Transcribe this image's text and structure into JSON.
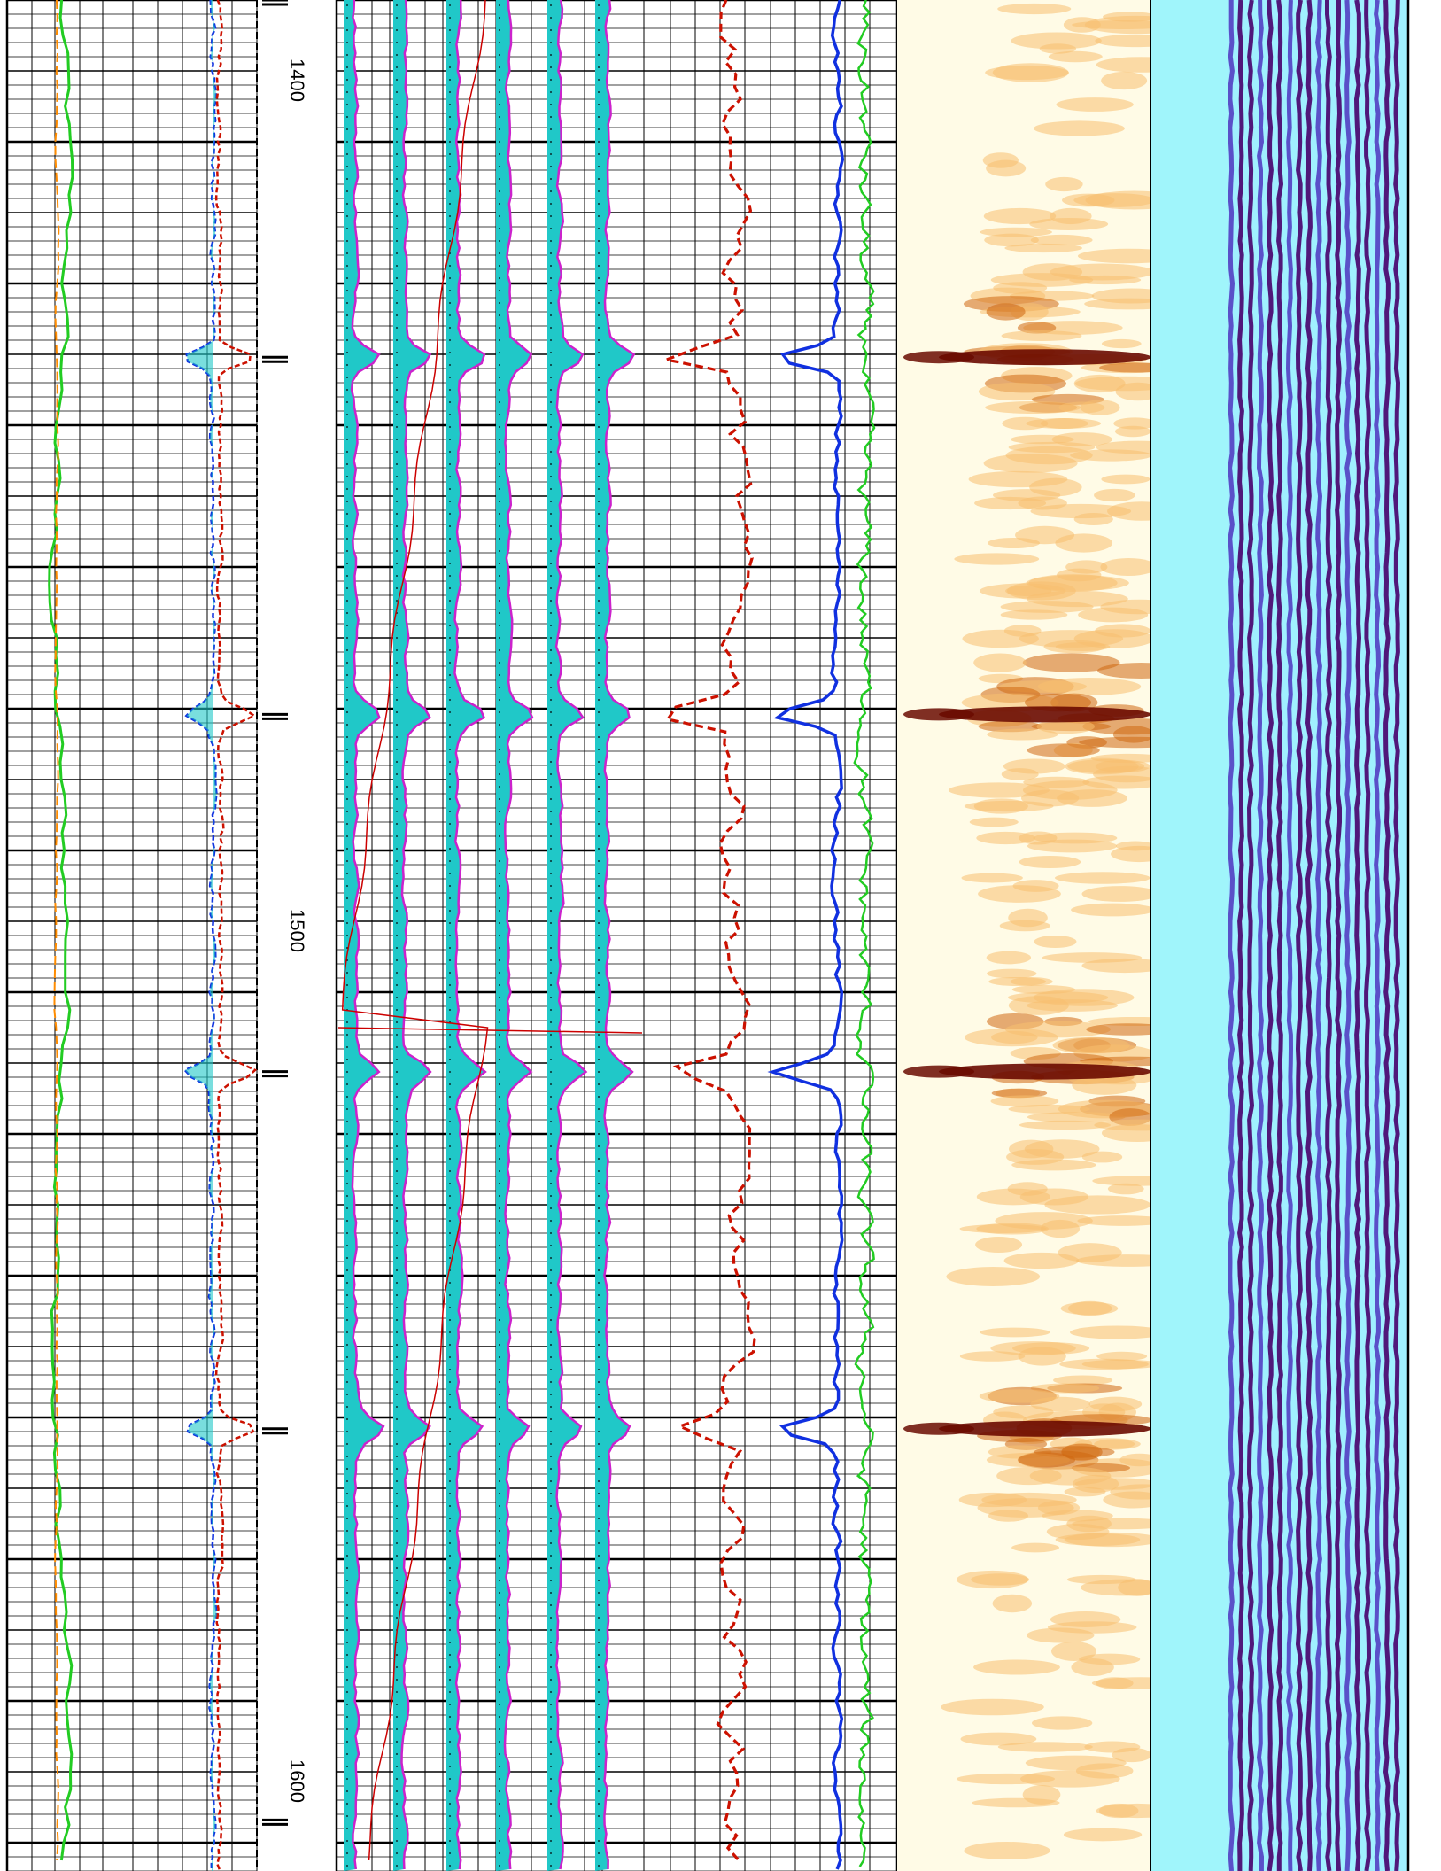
{
  "chart_data": {
    "type": "line",
    "title": "",
    "depth_axis": {
      "ticks": [
        "1400",
        "1500",
        "1600"
      ],
      "range": [
        1390,
        1610
      ]
    },
    "coupling_marks_depth": [
      1390,
      1432,
      1474,
      1516,
      1558,
      1604
    ],
    "tracks": [
      {
        "name": "",
        "series": [
          {
            "name": "",
            "color": "#22cc22",
            "style": "solid"
          },
          {
            "name": "",
            "color": "#ff8c00",
            "style": "dashed"
          },
          {
            "name": "",
            "color": "#1030e0",
            "style": "solid"
          },
          {
            "name": "",
            "color": "#cc1100",
            "style": "dashed"
          }
        ]
      },
      {
        "name": "",
        "series": [
          {
            "name": "",
            "color": "#cc22cc",
            "fill": "#20c8c8"
          },
          {
            "name": "",
            "color": "#cc0000",
            "style": "solid"
          }
        ]
      },
      {
        "name": "",
        "series": [
          {
            "name": "",
            "color": "#cc1100",
            "style": "dashed"
          },
          {
            "name": "",
            "color": "#1030e0",
            "style": "solid"
          },
          {
            "name": "",
            "color": "#22cc22",
            "style": "solid"
          }
        ]
      },
      {
        "name": "",
        "type": "heatmap",
        "palette": [
          "#fffbe6",
          "#f8c070",
          "#d06810",
          "#6a0a00"
        ]
      },
      {
        "name": "",
        "type": "heatmap",
        "palette": [
          "#a0f5fb"
        ]
      },
      {
        "name": "",
        "type": "heatmap",
        "palette": [
          "#a0f0ff",
          "#5a50c8",
          "#50187a"
        ]
      }
    ],
    "spike_depths": [
      1432,
      1474,
      1516,
      1558
    ],
    "grid": true
  }
}
